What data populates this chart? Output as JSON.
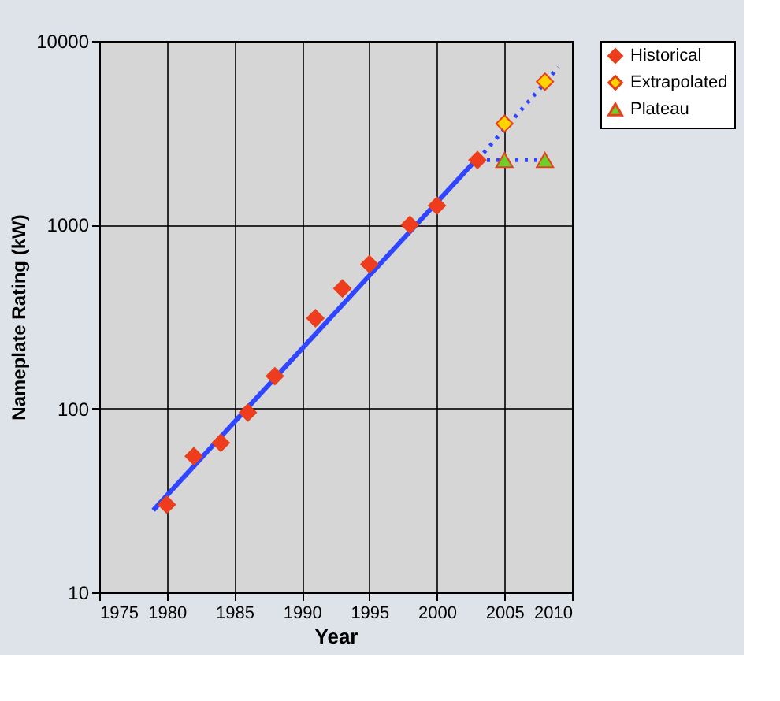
{
  "chart_data": {
    "type": "scatter",
    "xlabel": "Year",
    "ylabel": "Nameplate Rating (kW)",
    "xlim": [
      1975,
      2010
    ],
    "xticks": [
      1975,
      1980,
      1985,
      1990,
      1995,
      2000,
      2005,
      2010
    ],
    "ylim": [
      10,
      10000
    ],
    "yticks": [
      10,
      100,
      1000,
      10000
    ],
    "log": "y",
    "grid": true,
    "legend": "right",
    "series": [
      {
        "type": "line",
        "color": "#2f45ff",
        "line_style": "solid",
        "marker": "none",
        "x": [
          1979,
          2003
        ],
        "values": [
          28,
          2300
        ]
      },
      {
        "type": "line",
        "color": "#2f45ff",
        "line_style": "dotted",
        "marker": "none",
        "x": [
          2003,
          2009
        ],
        "values": [
          2250,
          7200
        ]
      },
      {
        "type": "line",
        "color": "#2f45ff",
        "line_style": "dotted",
        "marker": "none",
        "x": [
          2003,
          2008
        ],
        "values": [
          2250,
          2250
        ]
      },
      {
        "name": "Historical",
        "color": "#f03c1e",
        "marker": "diamond",
        "x": [
          1980,
          1982,
          1984,
          1986,
          1988,
          1991,
          1993,
          1995,
          1998,
          2000,
          2003
        ],
        "values": [
          30,
          55,
          65,
          95,
          150,
          310,
          450,
          610,
          1000,
          1270,
          2250
        ]
      },
      {
        "name": "Extrapolated",
        "color": "#ffd400",
        "marker": "diamond",
        "x": [
          2005,
          2008
        ],
        "values": [
          3550,
          6000
        ]
      },
      {
        "name": "Plateau",
        "color": "#6ccf2a",
        "marker": "triangle",
        "x": [
          2005,
          2008
        ],
        "values": [
          2250,
          2250
        ]
      }
    ]
  }
}
